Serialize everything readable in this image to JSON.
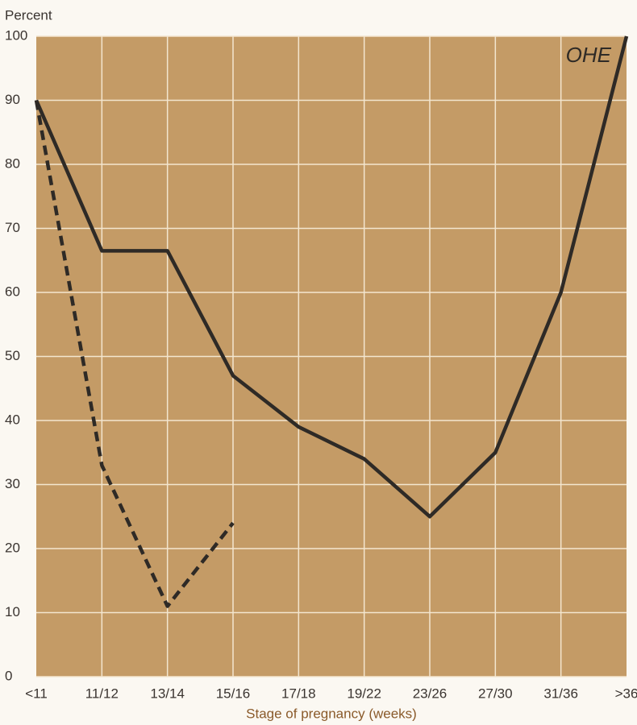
{
  "chart_data": {
    "type": "line",
    "y_label": "Percent",
    "x_label": "Stage of pregnancy (weeks)",
    "annotation": "OHE",
    "categories": [
      "<11",
      "11/12",
      "13/14",
      "15/16",
      "17/18",
      "19/22",
      "23/26",
      "27/30",
      "31/36",
      ">36"
    ],
    "series": [
      {
        "color": "#2e2a26",
        "dashed": false,
        "values": [
          90,
          66.5,
          66.5,
          47,
          39,
          34,
          25,
          35,
          60,
          100
        ]
      },
      {
        "color": "#2e2a26",
        "dashed": true,
        "values": [
          90,
          33,
          11,
          24,
          null,
          null,
          null,
          null,
          null,
          null
        ]
      }
    ],
    "ylim": [
      0,
      100
    ],
    "yticks": [
      0,
      10,
      20,
      30,
      40,
      50,
      60,
      70,
      80,
      90,
      100
    ],
    "grid": true,
    "background": "#c49b66"
  }
}
